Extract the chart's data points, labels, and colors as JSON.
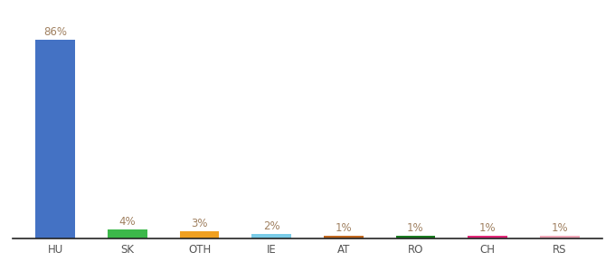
{
  "categories": [
    "HU",
    "SK",
    "OTH",
    "IE",
    "AT",
    "RO",
    "CH",
    "RS"
  ],
  "values": [
    86,
    4,
    3,
    2,
    1,
    1,
    1,
    1
  ],
  "labels": [
    "86%",
    "4%",
    "3%",
    "2%",
    "1%",
    "1%",
    "1%",
    "1%"
  ],
  "colors": [
    "#4472c4",
    "#3cb84a",
    "#f0a020",
    "#7acce8",
    "#c06820",
    "#1a7a20",
    "#e02878",
    "#f0a8b8"
  ],
  "background_color": "#ffffff",
  "ylim": [
    0,
    95
  ],
  "label_fontsize": 8.5,
  "tick_fontsize": 8.5,
  "label_color": "#a08060"
}
